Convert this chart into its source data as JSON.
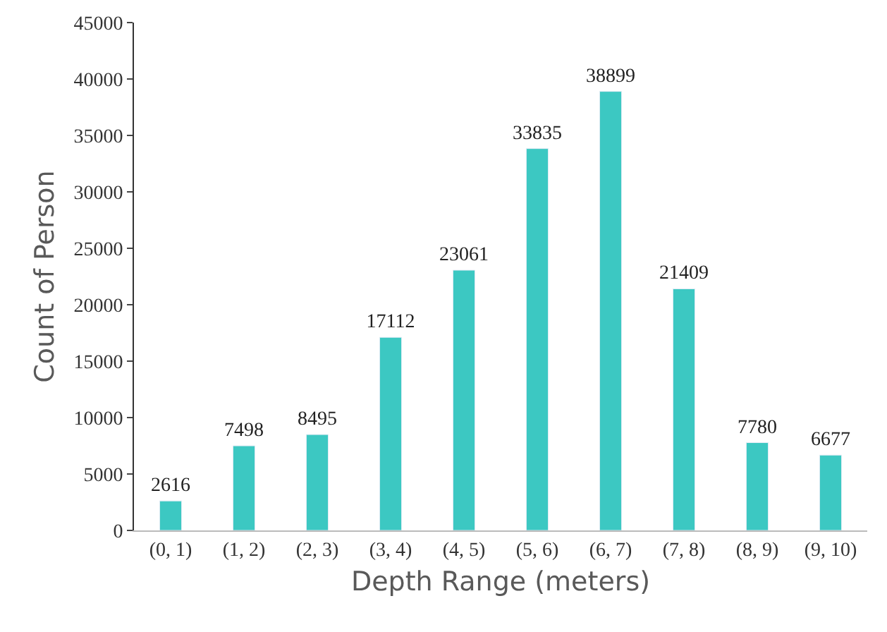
{
  "chart_data": {
    "type": "bar",
    "xlabel": "Depth Range (meters)",
    "ylabel": "Count of Person",
    "categories": [
      "(0, 1)",
      "(1, 2)",
      "(2, 3)",
      "(3, 4)",
      "(4, 5)",
      "(5, 6)",
      "(6, 7)",
      "(7, 8)",
      "(8, 9)",
      "(9, 10)"
    ],
    "values": [
      2616,
      7498,
      8495,
      17112,
      23061,
      33835,
      38899,
      21409,
      7780,
      6677
    ],
    "color": "#3cc8c2",
    "ylim": [
      0,
      45000
    ],
    "yticks": [
      0,
      5000,
      10000,
      15000,
      20000,
      25000,
      30000,
      35000,
      40000,
      45000
    ],
    "legend": false,
    "data_labels": true
  }
}
